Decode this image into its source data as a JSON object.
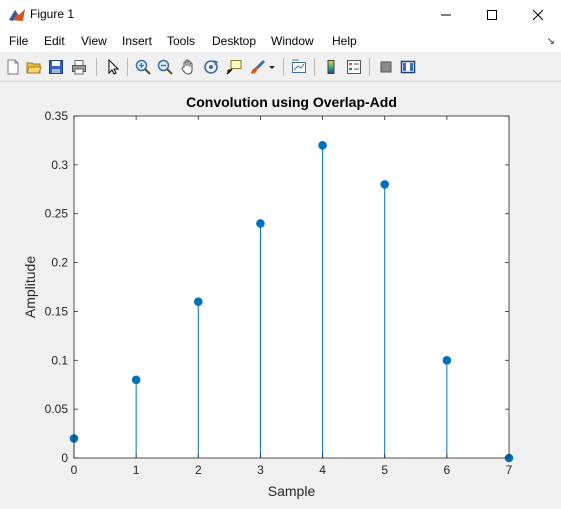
{
  "window": {
    "title": "Figure 1",
    "icon": "matlab-figure-icon",
    "controls": [
      "minimize",
      "maximize",
      "close"
    ]
  },
  "menu": {
    "items": [
      "File",
      "Edit",
      "View",
      "Insert",
      "Tools",
      "Desktop",
      "Window",
      "Help"
    ]
  },
  "toolbar": {
    "buttons": [
      "new-figure-icon",
      "open-file-icon",
      "save-icon",
      "print-icon",
      "edit-plot-arrow-icon",
      "zoom-in-icon",
      "zoom-out-icon",
      "pan-hand-icon",
      "rotate-3d-icon",
      "data-cursor-icon",
      "brush-icon",
      "link-plot-icon",
      "insert-colorbar-icon",
      "insert-legend-icon",
      "hide-plot-tools-icon",
      "show-plot-tools-icon"
    ]
  },
  "chart_data": {
    "type": "stem",
    "title": "Convolution using Overlap-Add",
    "xlabel": "Sample",
    "ylabel": "Amplitude",
    "x": [
      0,
      1,
      2,
      3,
      4,
      5,
      6,
      7
    ],
    "values": [
      0.02,
      0.08,
      0.16,
      0.24,
      0.32,
      0.28,
      0.1,
      0
    ],
    "xlim": [
      0,
      7
    ],
    "ylim": [
      0,
      0.35
    ],
    "xticks": [
      "0",
      "1",
      "2",
      "3",
      "4",
      "5",
      "6",
      "7"
    ],
    "yticks": [
      "0",
      "0.05",
      "0.1",
      "0.15",
      "0.2",
      "0.25",
      "0.3",
      "0.35"
    ],
    "grid": false,
    "color": "#0072bd"
  }
}
